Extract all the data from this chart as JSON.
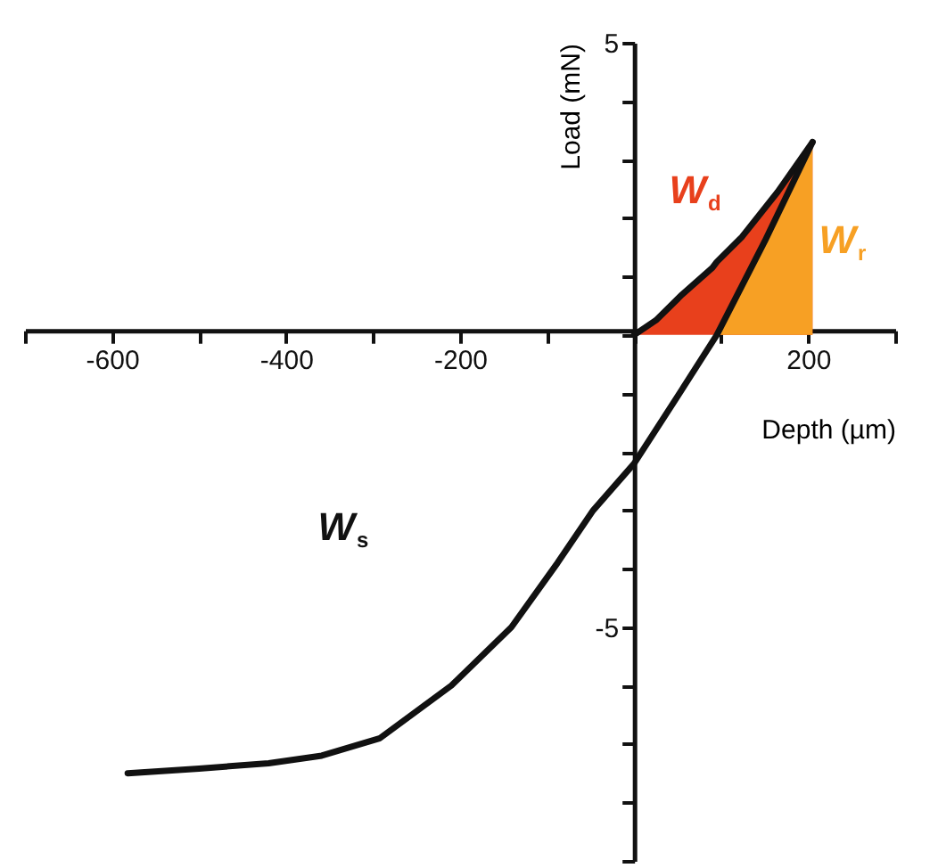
{
  "chart_data": {
    "type": "line",
    "xlabel": "Depth (µm)",
    "ylabel": "Load (mN)",
    "xlim": [
      -700,
      300
    ],
    "ylim": [
      -9,
      5
    ],
    "xticks": [
      {
        "value": -700,
        "label": null
      },
      -600,
      {
        "value": -500,
        "label": null
      },
      -400,
      {
        "value": -300,
        "label": null
      },
      -200,
      {
        "value": -100,
        "label": null
      },
      {
        "value": 0,
        "label": null
      },
      {
        "value": 100,
        "label": null
      },
      200,
      {
        "value": 300,
        "label": null
      }
    ],
    "yticks": [
      {
        "value": -9,
        "label": null
      },
      {
        "value": -8,
        "label": null
      },
      {
        "value": -7,
        "label": null
      },
      {
        "value": -6,
        "label": null
      },
      -5,
      {
        "value": -4,
        "label": null
      },
      {
        "value": -3,
        "label": null
      },
      {
        "value": -2,
        "label": null
      },
      {
        "value": -1,
        "label": null
      },
      {
        "value": 0,
        "label": null
      },
      {
        "value": 1,
        "label": null
      },
      {
        "value": 2,
        "label": null
      },
      {
        "value": 3,
        "label": null
      },
      {
        "value": 4,
        "label": null
      },
      5
    ],
    "grid": false,
    "series": [
      {
        "color": "#111111",
        "x": [
          -582,
          -500,
          -420,
          -359,
          -292,
          -210,
          -141,
          -88,
          -47,
          0,
          50,
          95,
          150,
          205
        ],
        "values": [
          -7.5,
          -7.42,
          -7.33,
          -7.2,
          -6.9,
          -6.0,
          -5.0,
          -3.9,
          -3.0,
          -2.2,
          -1.05,
          0,
          1.6,
          3.3
        ]
      },
      {
        "type": "area",
        "color": "#e8401c",
        "x": [
          0,
          25,
          55,
          90,
          95,
          124,
          165,
          205
        ],
        "values": [
          0,
          0.25,
          0.69,
          1.15,
          1.25,
          1.68,
          2.45,
          3.3
        ]
      },
      {
        "type": "area",
        "color": "#f7a024",
        "x": [
          95,
          150,
          205
        ],
        "values": [
          0,
          1.6,
          3.3
        ]
      }
    ],
    "annotations": [
      "W$_{s}$",
      "W$_{d}$",
      "W$_{r}$"
    ]
  }
}
